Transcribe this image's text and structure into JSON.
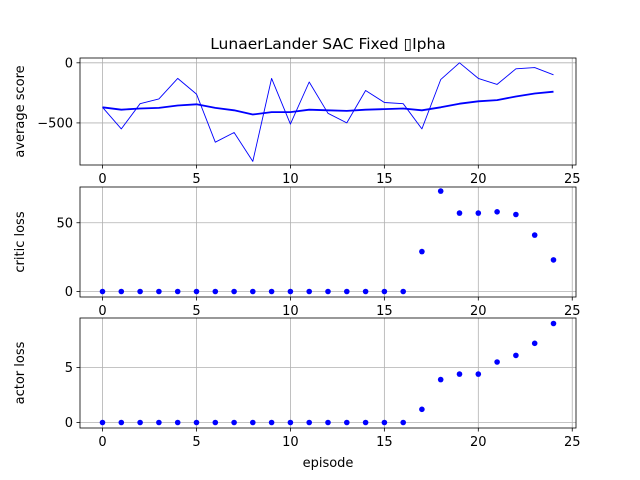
{
  "chart_data": [
    {
      "type": "line",
      "title": "LunaerLander SAC Fixed ▯Ipha",
      "xlabel": "",
      "ylabel": "average score",
      "xlim": [
        -1.2,
        25.2
      ],
      "ylim": [
        -850,
        40
      ],
      "xticks": [
        0,
        5,
        10,
        15,
        20,
        25
      ],
      "yticks": [
        -500,
        0
      ],
      "grid": true,
      "x": [
        0,
        1,
        2,
        3,
        4,
        5,
        6,
        7,
        8,
        9,
        10,
        11,
        12,
        13,
        14,
        15,
        16,
        17,
        18,
        19,
        20,
        21,
        22,
        23,
        24
      ],
      "series": [
        {
          "name": "",
          "color": "#0000ff",
          "line_width": 0.9,
          "values": [
            -370,
            -550,
            -340,
            -300,
            -130,
            -260,
            -660,
            -580,
            -820,
            -130,
            -510,
            -160,
            -420,
            -500,
            -230,
            -330,
            -340,
            -550,
            -140,
            0,
            -130,
            -180,
            -50,
            -40,
            -100
          ]
        },
        {
          "name": "",
          "color": "#0000ff",
          "line_width": 1.8,
          "values": [
            -370,
            -390,
            -380,
            -375,
            -355,
            -345,
            -375,
            -395,
            -430,
            -410,
            -410,
            -390,
            -395,
            -400,
            -390,
            -385,
            -380,
            -395,
            -370,
            -340,
            -320,
            -310,
            -280,
            -255,
            -240
          ]
        }
      ]
    },
    {
      "type": "scatter",
      "title": "",
      "xlabel": "",
      "ylabel": "critic loss",
      "xlim": [
        -1.2,
        25.2
      ],
      "ylim": [
        -4,
        76
      ],
      "xticks": [
        0,
        5,
        10,
        15,
        20,
        25
      ],
      "yticks": [
        0,
        50
      ],
      "grid": true,
      "x": [
        0,
        1,
        2,
        3,
        4,
        5,
        6,
        7,
        8,
        9,
        10,
        11,
        12,
        13,
        14,
        15,
        16,
        17,
        18,
        19,
        20,
        21,
        22,
        23,
        24
      ],
      "series": [
        {
          "name": "",
          "color": "#0000ff",
          "values": [
            0,
            0,
            0,
            0,
            0,
            0,
            0,
            0,
            0,
            0,
            0,
            0,
            0,
            0,
            0,
            0,
            0,
            29,
            73,
            57,
            57,
            58,
            56,
            41,
            23
          ]
        }
      ]
    },
    {
      "type": "scatter",
      "title": "",
      "xlabel": "episode",
      "ylabel": "actor loss",
      "xlim": [
        -1.2,
        25.2
      ],
      "ylim": [
        -0.5,
        9.5
      ],
      "xticks": [
        0,
        5,
        10,
        15,
        20,
        25
      ],
      "yticks": [
        0,
        5
      ],
      "grid": true,
      "x": [
        0,
        1,
        2,
        3,
        4,
        5,
        6,
        7,
        8,
        9,
        10,
        11,
        12,
        13,
        14,
        15,
        16,
        17,
        18,
        19,
        20,
        21,
        22,
        23,
        24
      ],
      "series": [
        {
          "name": "",
          "color": "#0000ff",
          "values": [
            0,
            0,
            0,
            0,
            0,
            0,
            0,
            0,
            0,
            0,
            0,
            0,
            0,
            0,
            0,
            0,
            0,
            1.2,
            3.9,
            4.4,
            4.4,
            5.5,
            6.1,
            7.2,
            9.0
          ]
        }
      ]
    }
  ]
}
